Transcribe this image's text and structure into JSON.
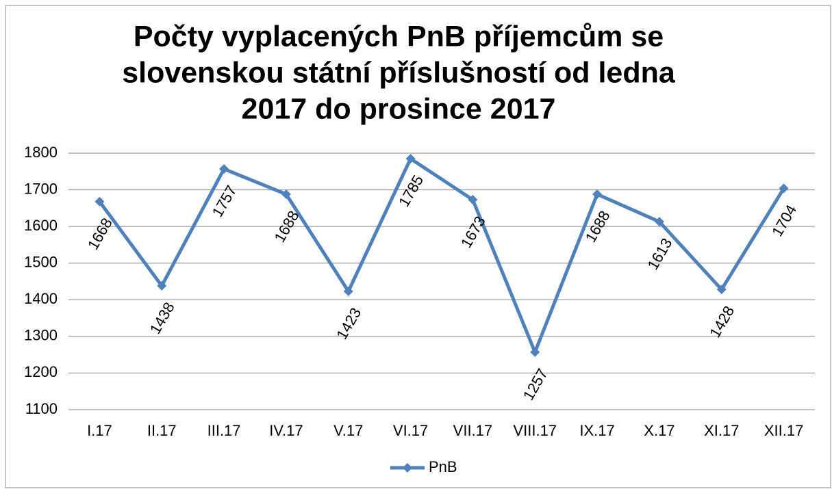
{
  "chart_data": {
    "type": "line",
    "title": [
      "Počty vyplacených PnB příjemcům se",
      "slovenskou státní příslušností od ledna",
      "2017 do prosince 2017"
    ],
    "categories": [
      "I.17",
      "II.17",
      "III.17",
      "IV.17",
      "V.17",
      "VI.17",
      "VII.17",
      "VIII.17",
      "IX.17",
      "X.17",
      "XI.17",
      "XII.17"
    ],
    "series": [
      {
        "name": "PnB",
        "color": "#4f81bd",
        "values": [
          1668,
          1438,
          1757,
          1688,
          1423,
          1785,
          1673,
          1257,
          1688,
          1613,
          1428,
          1704
        ]
      }
    ],
    "ylim": [
      1100,
      1800
    ],
    "yticks": [
      1100,
      1200,
      1300,
      1400,
      1500,
      1600,
      1700,
      1800
    ],
    "grid": true,
    "legend": "bottom"
  }
}
